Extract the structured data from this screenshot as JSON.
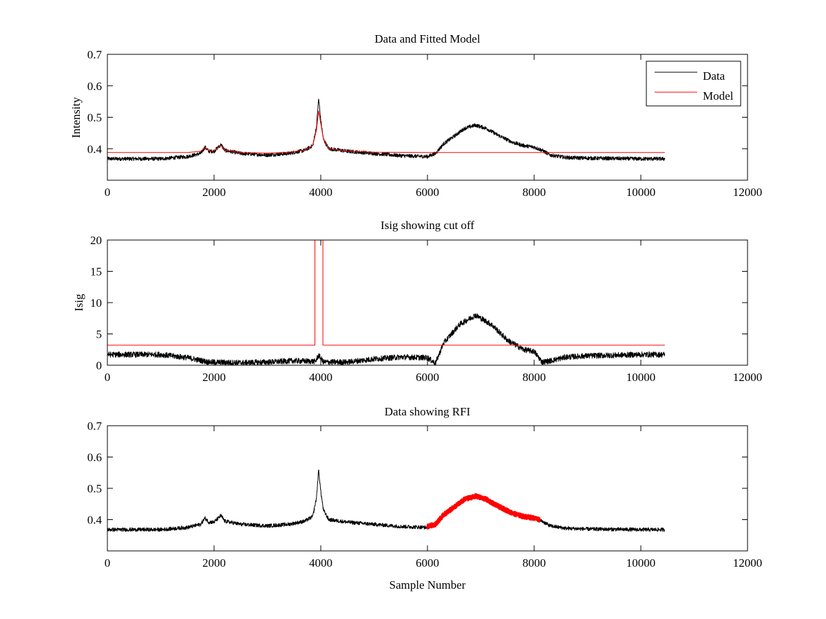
{
  "chart_data": [
    {
      "type": "line",
      "title": "Data and Fitted Model",
      "xlabel": "",
      "ylabel": "Intensity",
      "xlim": [
        0,
        12000
      ],
      "ylim": [
        0.3,
        0.7
      ],
      "xticks": [
        "0",
        "2000",
        "4000",
        "6000",
        "8000",
        "10000",
        "12000"
      ],
      "yticks": [
        "0.4",
        "0.5",
        "0.6",
        "0.7"
      ],
      "legend_position": "top-right",
      "series": [
        {
          "name": "Data",
          "color": "#000000",
          "noise": 0.006,
          "points": [
            [
              0,
              0.368
            ],
            [
              1000,
              0.368
            ],
            [
              1500,
              0.375
            ],
            [
              1750,
              0.385
            ],
            [
              1830,
              0.405
            ],
            [
              1900,
              0.392
            ],
            [
              2000,
              0.392
            ],
            [
              2130,
              0.413
            ],
            [
              2200,
              0.395
            ],
            [
              2500,
              0.385
            ],
            [
              3000,
              0.38
            ],
            [
              3400,
              0.385
            ],
            [
              3700,
              0.395
            ],
            [
              3850,
              0.41
            ],
            [
              3920,
              0.47
            ],
            [
              3960,
              0.56
            ],
            [
              4000,
              0.49
            ],
            [
              4050,
              0.43
            ],
            [
              4150,
              0.4
            ],
            [
              4500,
              0.392
            ],
            [
              5000,
              0.385
            ],
            [
              5500,
              0.378
            ],
            [
              6000,
              0.375
            ],
            [
              6150,
              0.385
            ],
            [
              6300,
              0.415
            ],
            [
              6500,
              0.44
            ],
            [
              6700,
              0.465
            ],
            [
              6900,
              0.475
            ],
            [
              7100,
              0.465
            ],
            [
              7300,
              0.445
            ],
            [
              7600,
              0.42
            ],
            [
              7800,
              0.41
            ],
            [
              8000,
              0.405
            ],
            [
              8150,
              0.395
            ],
            [
              8300,
              0.38
            ],
            [
              8600,
              0.372
            ],
            [
              9000,
              0.37
            ],
            [
              10000,
              0.368
            ],
            [
              10450,
              0.368
            ]
          ]
        },
        {
          "name": "Model",
          "color": "#ff0000",
          "noise": 0,
          "points": [
            [
              0,
              0.388
            ],
            [
              1500,
              0.388
            ],
            [
              1750,
              0.392
            ],
            [
              1830,
              0.404
            ],
            [
              1900,
              0.394
            ],
            [
              2000,
              0.394
            ],
            [
              2130,
              0.41
            ],
            [
              2200,
              0.396
            ],
            [
              2500,
              0.388
            ],
            [
              3000,
              0.386
            ],
            [
              3400,
              0.389
            ],
            [
              3700,
              0.396
            ],
            [
              3850,
              0.41
            ],
            [
              3920,
              0.46
            ],
            [
              3960,
              0.52
            ],
            [
              4000,
              0.48
            ],
            [
              4050,
              0.43
            ],
            [
              4150,
              0.4
            ],
            [
              4500,
              0.392
            ],
            [
              5000,
              0.389
            ],
            [
              6000,
              0.388
            ],
            [
              10450,
              0.388
            ]
          ]
        }
      ]
    },
    {
      "type": "line",
      "title": "Isig showing cut off",
      "xlabel": "",
      "ylabel": "Isig",
      "xlim": [
        0,
        12000
      ],
      "ylim": [
        0,
        20
      ],
      "xticks": [
        "0",
        "2000",
        "4000",
        "6000",
        "8000",
        "10000",
        "12000"
      ],
      "yticks": [
        "0",
        "5",
        "10",
        "15",
        "20"
      ],
      "series": [
        {
          "name": "",
          "color": "#000000",
          "noise": 0.45,
          "points": [
            [
              0,
              1.7
            ],
            [
              1000,
              1.7
            ],
            [
              1500,
              1.2
            ],
            [
              1900,
              0.5
            ],
            [
              2500,
              0.4
            ],
            [
              3000,
              0.5
            ],
            [
              3500,
              0.7
            ],
            [
              3900,
              0.6
            ],
            [
              3960,
              1.6
            ],
            [
              4050,
              0.5
            ],
            [
              4500,
              0.5
            ],
            [
              5000,
              1.0
            ],
            [
              5500,
              1.3
            ],
            [
              6000,
              1.2
            ],
            [
              6150,
              0.3
            ],
            [
              6300,
              3.5
            ],
            [
              6600,
              6.5
            ],
            [
              6900,
              8.0
            ],
            [
              7200,
              6.5
            ],
            [
              7500,
              4.0
            ],
            [
              7800,
              2.5
            ],
            [
              8000,
              2.2
            ],
            [
              8150,
              0.5
            ],
            [
              8300,
              0.7
            ],
            [
              8600,
              1.3
            ],
            [
              9000,
              1.5
            ],
            [
              10000,
              1.7
            ],
            [
              10450,
              1.7
            ]
          ]
        },
        {
          "name": "",
          "color": "#ff0000",
          "noise": 0,
          "points": [
            [
              0,
              3.2
            ],
            [
              3890,
              3.2
            ],
            [
              3890,
              20
            ],
            [
              4040,
              20
            ],
            [
              4040,
              3.2
            ],
            [
              10450,
              3.2
            ]
          ]
        }
      ]
    },
    {
      "type": "line",
      "title": "Data showing RFI",
      "xlabel": "Sample Number",
      "ylabel": "",
      "xlim": [
        0,
        12000
      ],
      "ylim": [
        0.3,
        0.7
      ],
      "xticks": [
        "0",
        "2000",
        "4000",
        "6000",
        "8000",
        "10000",
        "12000"
      ],
      "yticks": [
        "0.4",
        "0.5",
        "0.6",
        "0.7"
      ],
      "series": [
        {
          "name": "",
          "color": "#000000",
          "noise": 0.006,
          "points": [
            [
              0,
              0.368
            ],
            [
              1000,
              0.368
            ],
            [
              1500,
              0.375
            ],
            [
              1750,
              0.385
            ],
            [
              1830,
              0.405
            ],
            [
              1900,
              0.392
            ],
            [
              2000,
              0.392
            ],
            [
              2130,
              0.413
            ],
            [
              2200,
              0.395
            ],
            [
              2500,
              0.385
            ],
            [
              3000,
              0.38
            ],
            [
              3400,
              0.385
            ],
            [
              3700,
              0.395
            ],
            [
              3850,
              0.41
            ],
            [
              3920,
              0.47
            ],
            [
              3960,
              0.56
            ],
            [
              4000,
              0.49
            ],
            [
              4050,
              0.43
            ],
            [
              4150,
              0.4
            ],
            [
              4500,
              0.392
            ],
            [
              5000,
              0.385
            ],
            [
              5500,
              0.378
            ],
            [
              6000,
              0.375
            ],
            [
              6150,
              0.385
            ],
            [
              6300,
              0.415
            ],
            [
              6500,
              0.44
            ],
            [
              6700,
              0.465
            ],
            [
              6900,
              0.475
            ],
            [
              7100,
              0.465
            ],
            [
              7300,
              0.445
            ],
            [
              7600,
              0.42
            ],
            [
              7800,
              0.41
            ],
            [
              8000,
              0.405
            ],
            [
              8150,
              0.395
            ],
            [
              8300,
              0.38
            ],
            [
              8600,
              0.372
            ],
            [
              9000,
              0.37
            ],
            [
              10000,
              0.368
            ],
            [
              10450,
              0.368
            ]
          ]
        },
        {
          "name": "",
          "color": "#ff0000",
          "noise": 0.006,
          "points": [
            [
              6000,
              0.378
            ],
            [
              6150,
              0.385
            ],
            [
              6300,
              0.415
            ],
            [
              6500,
              0.44
            ],
            [
              6700,
              0.465
            ],
            [
              6900,
              0.475
            ],
            [
              7100,
              0.465
            ],
            [
              7300,
              0.445
            ],
            [
              7600,
              0.42
            ],
            [
              7800,
              0.41
            ],
            [
              8000,
              0.405
            ],
            [
              8100,
              0.4
            ]
          ]
        }
      ]
    }
  ]
}
